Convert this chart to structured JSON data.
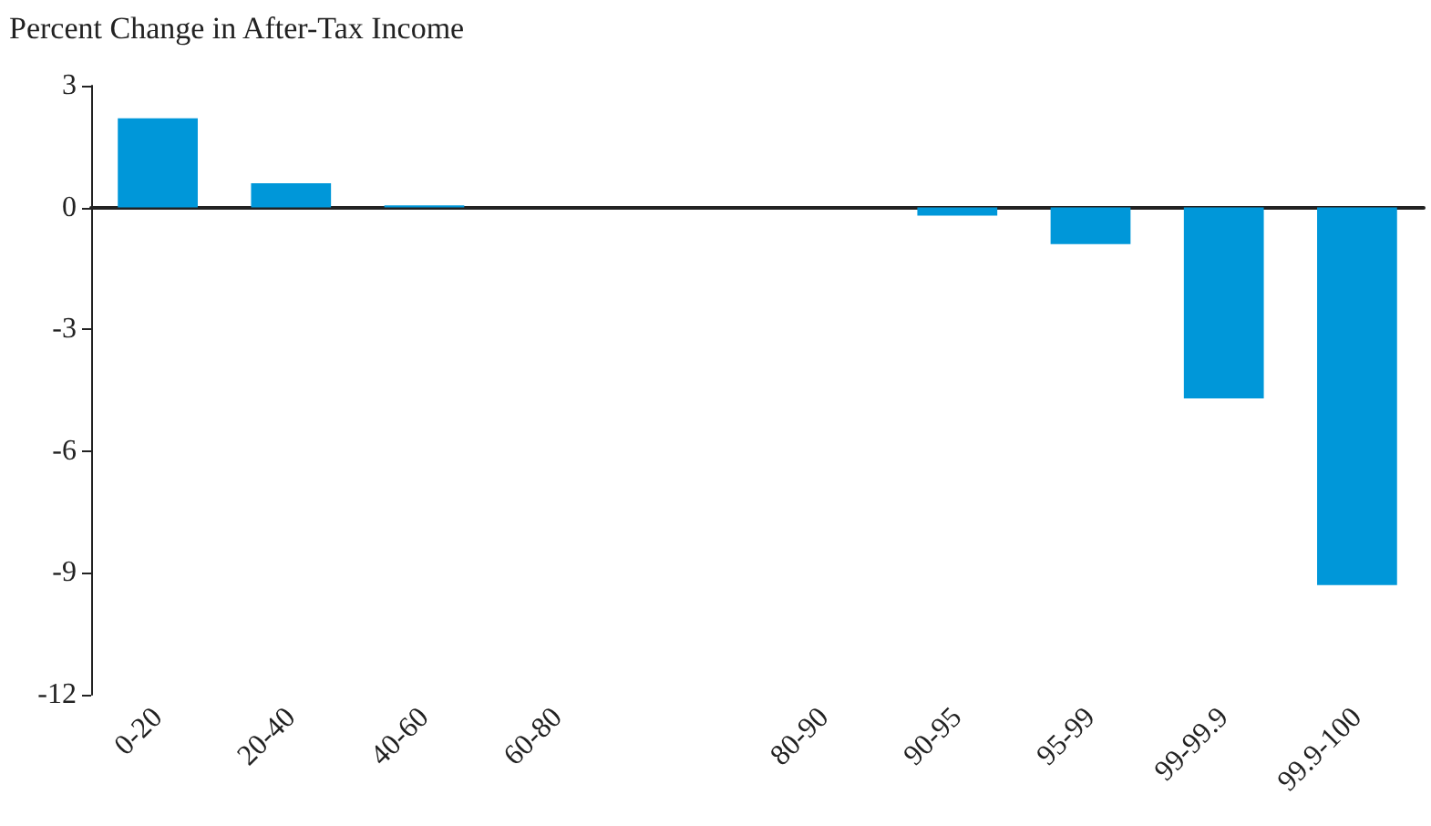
{
  "chart_data": {
    "type": "bar",
    "title": "Percent Change in After-Tax Income",
    "categories": [
      "0-20",
      "20-40",
      "40-60",
      "60-80",
      null,
      "80-90",
      "90-95",
      "95-99",
      "99-99.9",
      "99.9-100"
    ],
    "values": [
      2.2,
      0.6,
      0.05,
      0,
      null,
      0,
      -0.2,
      -0.9,
      -4.7,
      -9.3
    ],
    "color": "#0097d9",
    "ylim": [
      -12,
      3
    ],
    "yticks": [
      -12,
      -9,
      -6,
      -3,
      0,
      3
    ]
  }
}
